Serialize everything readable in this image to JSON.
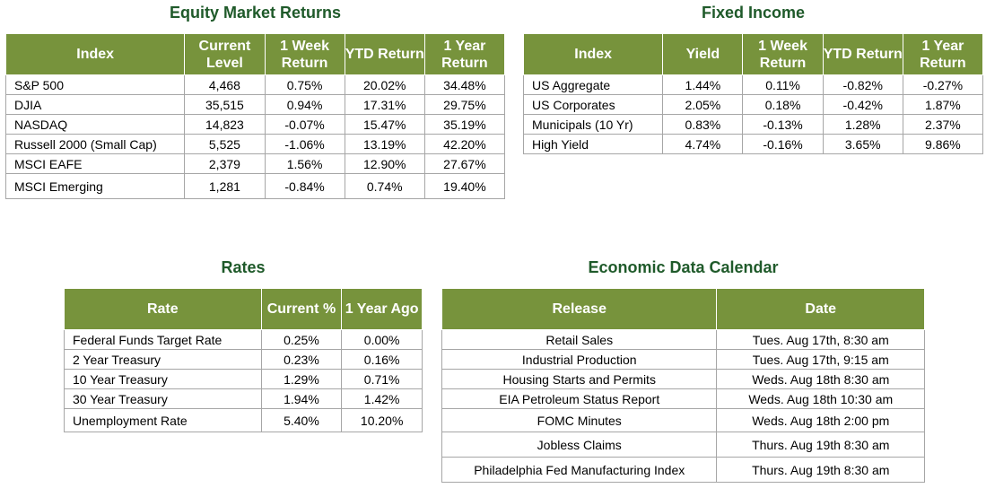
{
  "equity": {
    "title": "Equity Market Returns",
    "headers": [
      "Index",
      "Current Level",
      "1 Week Return",
      "YTD Return",
      "1 Year Return"
    ],
    "rows": [
      [
        "S&P 500",
        "4,468",
        "0.75%",
        "20.02%",
        "34.48%"
      ],
      [
        "DJIA",
        "35,515",
        "0.94%",
        "17.31%",
        "29.75%"
      ],
      [
        "NASDAQ",
        "14,823",
        "-0.07%",
        "15.47%",
        "35.19%"
      ],
      [
        "Russell 2000 (Small Cap)",
        "5,525",
        "-1.06%",
        "13.19%",
        "42.20%"
      ],
      [
        "MSCI EAFE",
        "2,379",
        "1.56%",
        "12.90%",
        "27.67%"
      ],
      [
        "MSCI Emerging",
        "1,281",
        "-0.84%",
        "0.74%",
        "19.40%"
      ]
    ]
  },
  "fixed_income": {
    "title": "Fixed Income",
    "headers": [
      "Index",
      "Yield",
      "1 Week Return",
      "YTD Return",
      "1 Year Return"
    ],
    "rows": [
      [
        "US Aggregate",
        "1.44%",
        "0.11%",
        "-0.82%",
        "-0.27%"
      ],
      [
        "US Corporates",
        "2.05%",
        "0.18%",
        "-0.42%",
        "1.87%"
      ],
      [
        "Municipals (10 Yr)",
        "0.83%",
        "-0.13%",
        "1.28%",
        "2.37%"
      ],
      [
        "High Yield",
        "4.74%",
        "-0.16%",
        "3.65%",
        "9.86%"
      ]
    ]
  },
  "rates": {
    "title": "Rates",
    "headers": [
      "Rate",
      "Current %",
      "1 Year Ago"
    ],
    "rows": [
      [
        "Federal Funds Target Rate",
        "0.25%",
        "0.00%"
      ],
      [
        "2 Year Treasury",
        "0.23%",
        "0.16%"
      ],
      [
        "10 Year Treasury",
        "1.29%",
        "0.71%"
      ],
      [
        "30 Year Treasury",
        "1.94%",
        "1.42%"
      ],
      [
        "Unemployment Rate",
        "5.40%",
        "10.20%"
      ]
    ]
  },
  "calendar": {
    "title": "Economic Data Calendar",
    "headers": [
      "Release",
      "Date"
    ],
    "rows": [
      [
        "Retail Sales",
        "Tues. Aug 17th, 8:30 am"
      ],
      [
        "Industrial Production",
        "Tues. Aug 17th, 9:15 am"
      ],
      [
        "Housing Starts and Permits",
        "Weds. Aug 18th 8:30 am"
      ],
      [
        "EIA Petroleum Status Report",
        "Weds. Aug 18th 10:30 am"
      ],
      [
        "FOMC Minutes",
        "Weds. Aug 18th 2:00 pm"
      ],
      [
        "Jobless Claims",
        "Thurs. Aug 19th 8:30 am"
      ],
      [
        "Philadelphia Fed Manufacturing Index",
        "Thurs. Aug 19th 8:30 am"
      ]
    ]
  }
}
